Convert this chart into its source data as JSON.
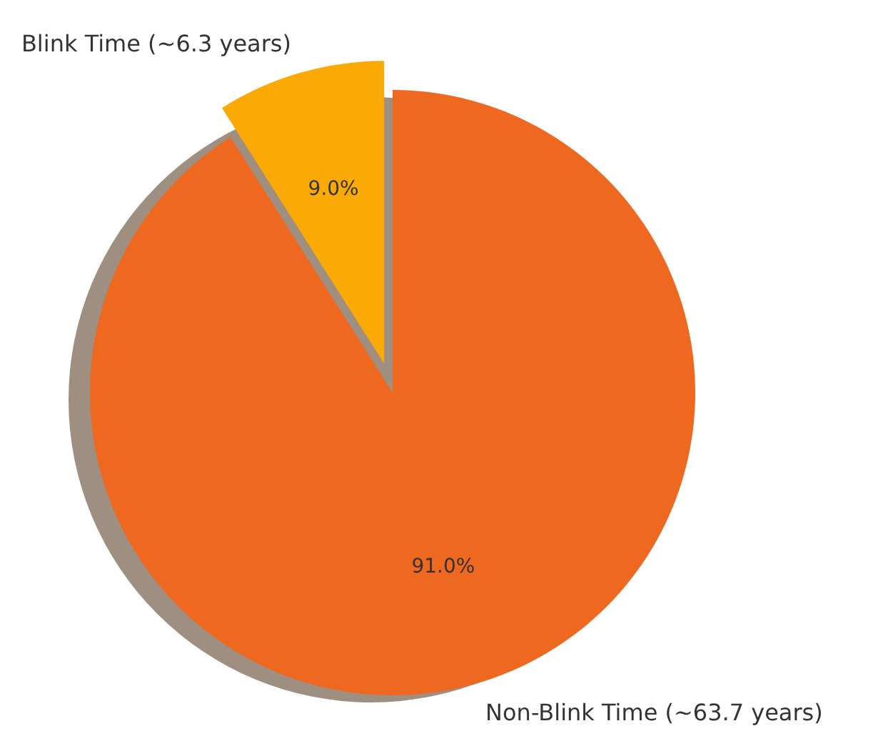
{
  "chart_data": {
    "type": "pie",
    "categories": [
      "Blink Time (~6.3 years)",
      "Non-Blink Time (~63.7 years)"
    ],
    "values": [
      9.0,
      91.0
    ],
    "colors": [
      "#fba904",
      "#ef6820"
    ],
    "value_labels": [
      "9.0%",
      "91.0%"
    ]
  }
}
